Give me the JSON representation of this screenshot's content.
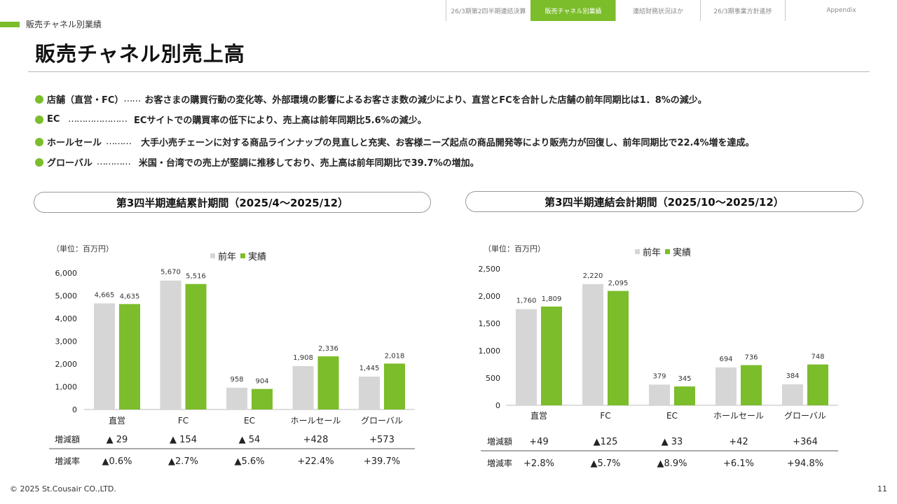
{
  "nav": {
    "tabs": [
      {
        "label": "26/3期第2四半期連結決算",
        "active": false
      },
      {
        "label": "販売チャネル別業績",
        "active": true
      },
      {
        "label": "連結財務状況ほか",
        "active": false
      },
      {
        "label": "26/3期事業方針進捗",
        "active": false
      },
      {
        "label": "Appendix",
        "active": false
      }
    ]
  },
  "section_label": "販売チャネル別業績",
  "page_title": "販売チャネル別売上高",
  "bullets": [
    {
      "label": "店舗（直営・FC）",
      "lead": "……",
      "text": "お客さまの購買行動の変化等、外部環境の影響によるお客さま数の減少により、直営とFCを合計した店舗の前年同期比は1．8%の減少。"
    },
    {
      "label": "EC",
      "lead": "…………………",
      "text": "ECサイトでの購買率の低下により、売上高は前年同期比5.6%の減少。"
    },
    {
      "label": "ホールセール",
      "lead": "………",
      "text": "大手小売チェーンに対する商品ラインナップの見直しと充実、お客様ニーズ起点の商品開発等により販売力が回復し、前年同期比で22.4%増を達成。"
    },
    {
      "label": "グローバル",
      "lead": "…………",
      "text": "米国・台湾での売上が堅調に推移しており、売上高は前年同期比で39.7%の増加。"
    }
  ],
  "colors": {
    "accent": "#7bbd2a",
    "prior": "#d6d6d6",
    "actual": "#7bbd2a"
  },
  "footer": "© 2025 St.Cousair CO.,LTD.",
  "page_number": "11",
  "chart_data": [
    {
      "type": "bar",
      "title": "第3四半期連結累計期間（2025/4～2025/12）",
      "unit_label": "（単位：百万円）",
      "categories": [
        "直営",
        "FC",
        "EC",
        "ホールセール",
        "グローバル"
      ],
      "series": [
        {
          "name": "前年",
          "values": [
            4665,
            5670,
            958,
            1908,
            1445
          ]
        },
        {
          "name": "実績",
          "values": [
            4635,
            5516,
            904,
            2336,
            2018
          ]
        }
      ],
      "value_labels": {
        "前年": [
          "4,665",
          "5,670",
          "958",
          "1,908",
          "1,445"
        ],
        "実績": [
          "4,635",
          "5,516",
          "904",
          "2,336",
          "2,018"
        ]
      },
      "ylim": [
        0,
        6000
      ],
      "yticks": [
        "0",
        "1,000",
        "2,000",
        "3,000",
        "4,000",
        "5,000",
        "6,000"
      ],
      "legend_position": "top",
      "grid": false,
      "table": {
        "rows": [
          {
            "label": "増減額",
            "values": [
              "▲ 29",
              "▲ 154",
              "▲ 54",
              "+428",
              "+573"
            ]
          },
          {
            "label": "増減率",
            "values": [
              "▲0.6%",
              "▲2.7%",
              "▲5.6%",
              "+22.4%",
              "+39.7%"
            ]
          }
        ]
      }
    },
    {
      "type": "bar",
      "title": "第3四半期連結会計期間（2025/10～2025/12）",
      "unit_label": "（単位：百万円）",
      "categories": [
        "直営",
        "FC",
        "EC",
        "ホールセール",
        "グローバル"
      ],
      "series": [
        {
          "name": "前年",
          "values": [
            1760,
            2220,
            379,
            694,
            384
          ]
        },
        {
          "name": "実績",
          "values": [
            1809,
            2095,
            345,
            736,
            748
          ]
        }
      ],
      "value_labels": {
        "前年": [
          "1,760",
          "2,220",
          "379",
          "694",
          "384"
        ],
        "実績": [
          "1,809",
          "2,095",
          "345",
          "736",
          "748"
        ]
      },
      "ylim": [
        0,
        2500
      ],
      "yticks": [
        "0",
        "500",
        "1,000",
        "1,500",
        "2,000",
        "2,500"
      ],
      "legend_position": "top",
      "grid": false,
      "table": {
        "rows": [
          {
            "label": "増減額",
            "values": [
              "+49",
              "▲125",
              "▲ 33",
              "+42",
              "+364"
            ]
          },
          {
            "label": "増減率",
            "values": [
              "+2.8%",
              "▲5.7%",
              "▲8.9%",
              "+6.1%",
              "+94.8%"
            ]
          }
        ]
      }
    }
  ]
}
